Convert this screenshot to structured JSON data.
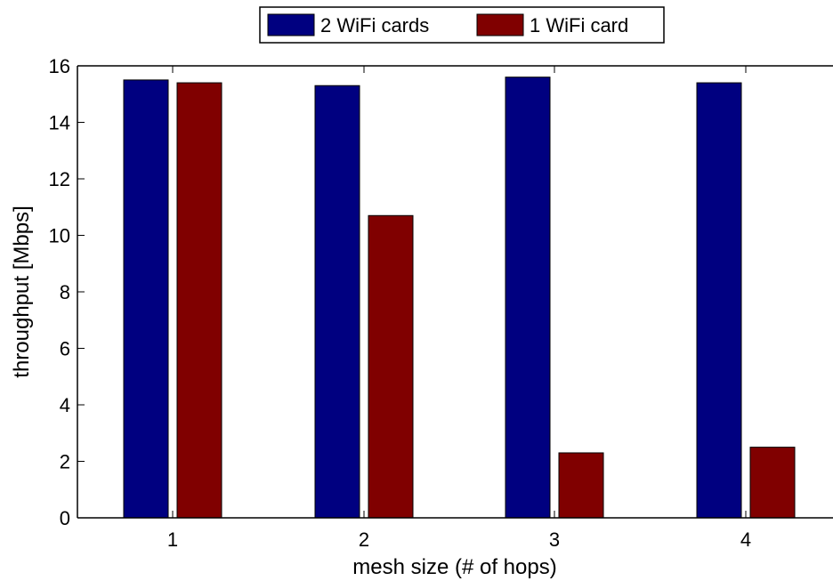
{
  "chart_data": {
    "type": "bar",
    "title": "",
    "xlabel": "mesh size (# of hops)",
    "ylabel": "throughput [Mbps]",
    "categories": [
      "1",
      "2",
      "3",
      "4"
    ],
    "ylim": [
      0,
      16
    ],
    "yticks": [
      "0",
      "2",
      "4",
      "6",
      "8",
      "10",
      "12",
      "14",
      "16"
    ],
    "grid": false,
    "legend_position": "top-center",
    "series": [
      {
        "name": "2 WiFi cards",
        "color": "#000080",
        "values": [
          15.5,
          15.3,
          15.6,
          15.4
        ]
      },
      {
        "name": "1 WiFi card",
        "color": "#800000",
        "values": [
          15.4,
          10.7,
          2.3,
          2.5
        ]
      }
    ]
  }
}
